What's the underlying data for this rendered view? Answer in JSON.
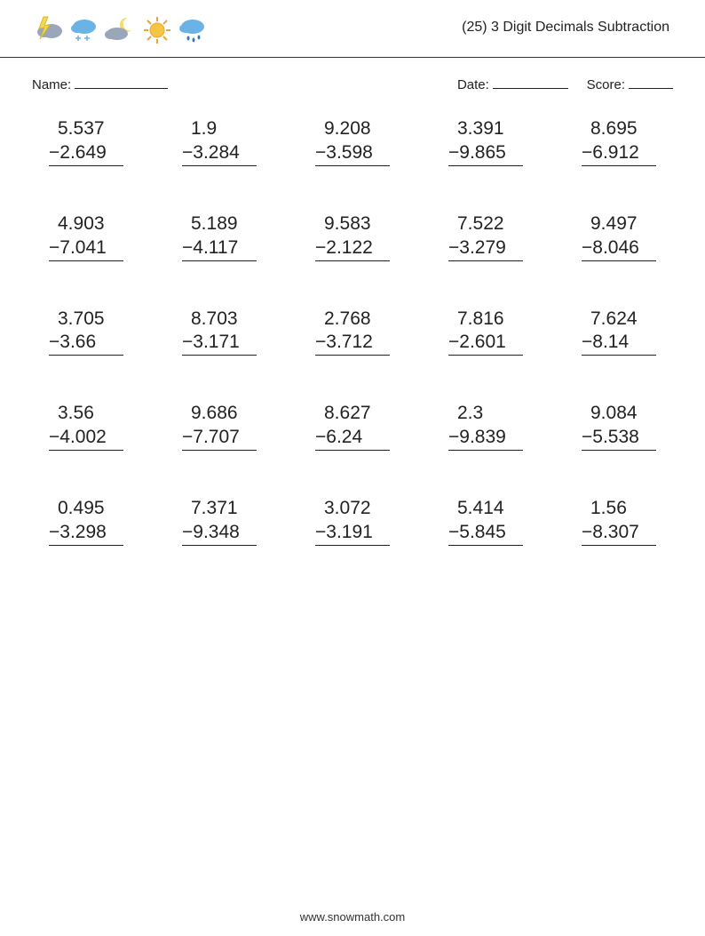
{
  "header": {
    "title": "(25) 3 Digit Decimals Subtraction",
    "icons": [
      "thunder",
      "snow-cloud",
      "moon-cloud",
      "sun",
      "rain-cloud"
    ]
  },
  "info": {
    "name_label": "Name:",
    "date_label": "Date:",
    "score_label": "Score:"
  },
  "styling": {
    "text_color": "#222222",
    "background_color": "#ffffff",
    "border_color": "#333333",
    "problem_fontsize_pt": 16,
    "title_fontsize_pt": 12,
    "label_fontsize_pt": 11,
    "footer_fontsize_pt": 10,
    "columns": 5,
    "rows": 5,
    "icon_colors": {
      "thunder_cloud": "#9aa7b8",
      "thunder_bolt": "#f2d94e",
      "snow_cloud": "#6bb3e6",
      "snow_flake": "#6bb3e6",
      "moon_cloud": "#9aa7b8",
      "moon": "#f4dd6e",
      "sun": "#f6c544",
      "sun_outline": "#e8a63a",
      "rain_cloud": "#6bb3e6",
      "rain_drop": "#3b78c4"
    }
  },
  "problems": [
    {
      "a": "5.537",
      "b": "2.649"
    },
    {
      "a": "1.9",
      "b": "3.284"
    },
    {
      "a": "9.208",
      "b": "3.598"
    },
    {
      "a": "3.391",
      "b": "9.865"
    },
    {
      "a": "8.695",
      "b": "6.912"
    },
    {
      "a": "4.903",
      "b": "7.041"
    },
    {
      "a": "5.189",
      "b": "4.117"
    },
    {
      "a": "9.583",
      "b": "2.122"
    },
    {
      "a": "7.522",
      "b": "3.279"
    },
    {
      "a": "9.497",
      "b": "8.046"
    },
    {
      "a": "3.705",
      "b": "3.66"
    },
    {
      "a": "8.703",
      "b": "3.171"
    },
    {
      "a": "2.768",
      "b": "3.712"
    },
    {
      "a": "7.816",
      "b": "2.601"
    },
    {
      "a": "7.624",
      "b": "8.14"
    },
    {
      "a": "3.56",
      "b": "4.002"
    },
    {
      "a": "9.686",
      "b": "7.707"
    },
    {
      "a": "8.627",
      "b": "6.24"
    },
    {
      "a": "2.3",
      "b": "9.839"
    },
    {
      "a": "9.084",
      "b": "5.538"
    },
    {
      "a": "0.495",
      "b": "3.298"
    },
    {
      "a": "7.371",
      "b": "9.348"
    },
    {
      "a": "3.072",
      "b": "3.191"
    },
    {
      "a": "5.414",
      "b": "5.845"
    },
    {
      "a": "1.56",
      "b": "8.307"
    }
  ],
  "footer": "www.snowmath.com"
}
